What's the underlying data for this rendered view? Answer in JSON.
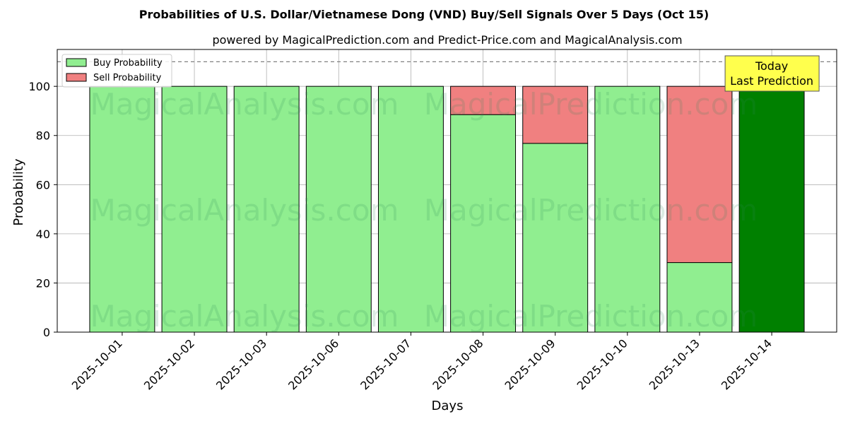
{
  "chart_data": {
    "type": "bar",
    "stacked": true,
    "title": "Probabilities of U.S. Dollar/Vietnamese Dong (VND) Buy/Sell Signals Over 5 Days (Oct 15)",
    "subtitle": "powered by MagicalPrediction.com and Predict-Price.com and MagicalAnalysis.com",
    "xlabel": "Days",
    "ylabel": "Probability",
    "ylim": [
      0,
      115
    ],
    "yticks": [
      0,
      20,
      40,
      60,
      80,
      100
    ],
    "grid": true,
    "legend_position": "top-left",
    "reference_line": 110,
    "categories": [
      "2025-10-01",
      "2025-10-02",
      "2025-10-03",
      "2025-10-06",
      "2025-10-07",
      "2025-10-08",
      "2025-10-09",
      "2025-10-10",
      "2025-10-13",
      "2025-10-14"
    ],
    "series": [
      {
        "name": "Buy Probability",
        "color": "#90ee90",
        "values": [
          100,
          100,
          100,
          100,
          100,
          88.5,
          76.8,
          100,
          28.3,
          100
        ]
      },
      {
        "name": "Sell Probability",
        "color": "#f08080",
        "values": [
          0,
          0,
          0,
          0,
          0,
          11.5,
          23.2,
          0,
          71.7,
          0
        ]
      }
    ],
    "highlight": {
      "index": 9,
      "color": "#008000"
    },
    "annotation": {
      "lines": [
        "Today",
        "Last Prediction"
      ],
      "background": "#ffff4d"
    },
    "watermarks": [
      "MagicalAnalysis.com",
      "MagicalPrediction.com"
    ]
  }
}
